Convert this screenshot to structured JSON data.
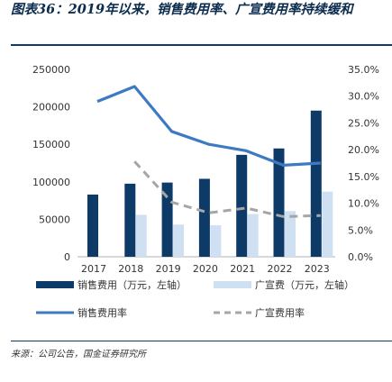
{
  "title": "图表36：2019年以来，销售费用率、广宣费用率持续缓和",
  "source": "来源：公司公告，国金证券研究所",
  "chart_data": {
    "type": "bar",
    "categories": [
      "2017",
      "2018",
      "2019",
      "2020",
      "2021",
      "2022",
      "2023"
    ],
    "series": [
      {
        "name": "销售费用（万元，左轴）",
        "type": "bar",
        "axis": "left",
        "color": "#0d3a66",
        "values": [
          83000,
          97500,
          99000,
          104000,
          136000,
          144500,
          195000
        ]
      },
      {
        "name": "广宣费（万元，左轴）",
        "type": "bar",
        "axis": "left",
        "color": "#cfe0f3",
        "values": [
          0,
          56000,
          43000,
          42000,
          57000,
          61000,
          87000
        ]
      },
      {
        "name": "销售费用率",
        "type": "line",
        "axis": "right",
        "color": "#3e7ac1",
        "values": [
          29.0,
          31.8,
          23.4,
          21.0,
          19.8,
          17.1,
          17.5
        ]
      },
      {
        "name": "广宣费用率",
        "type": "line",
        "axis": "right",
        "dashed": true,
        "color": "#a6a6a6",
        "values": [
          null,
          17.8,
          10.2,
          8.2,
          9.1,
          7.5,
          7.7
        ]
      }
    ],
    "left_axis": {
      "ticks": [
        "0",
        "50000",
        "100000",
        "150000",
        "200000",
        "250000"
      ],
      "ylim": [
        0,
        250000
      ]
    },
    "right_axis": {
      "ticks": [
        "0.0%",
        "5.0%",
        "10.0%",
        "15.0%",
        "20.0%",
        "25.0%",
        "30.0%",
        "35.0%"
      ],
      "ylim": [
        0,
        35
      ]
    },
    "grid": false,
    "legend_position": "bottom"
  }
}
